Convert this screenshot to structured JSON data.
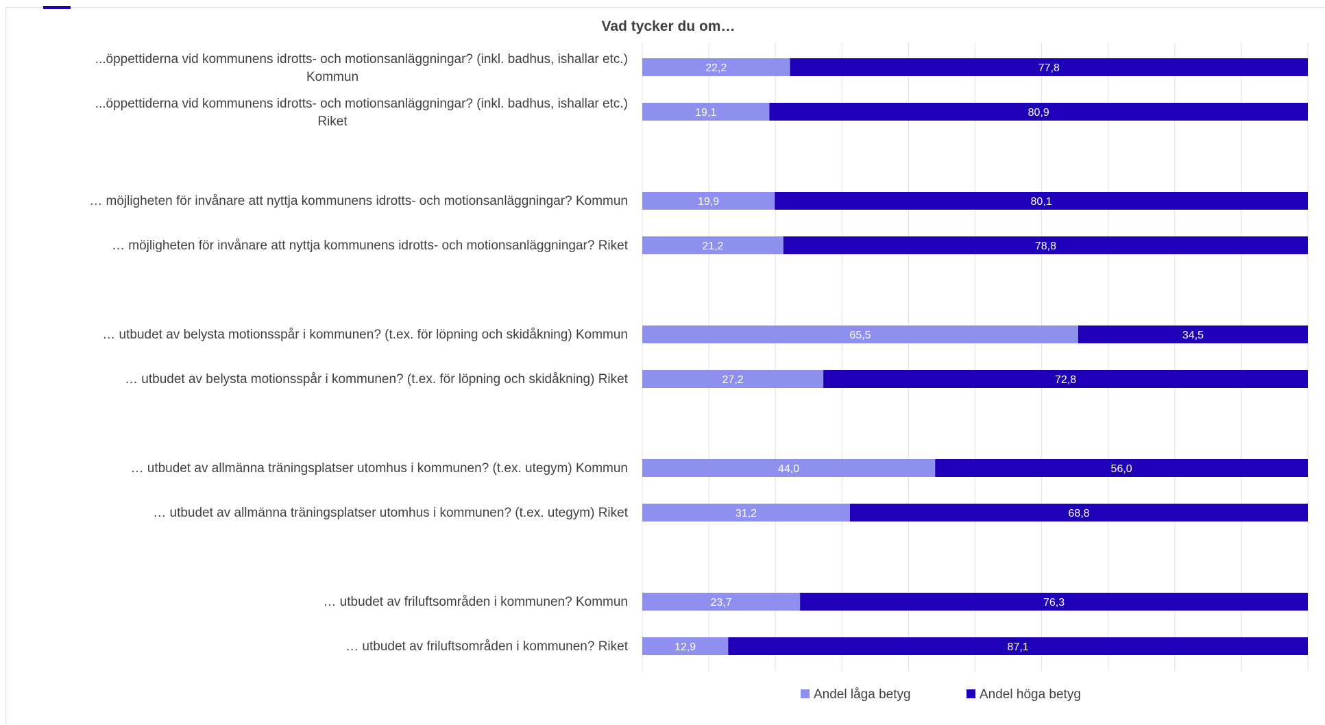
{
  "colors": {
    "low": "#8f8ff0",
    "high": "#1f00b8",
    "grid": "#e0e0e0",
    "text": "#404040",
    "label_text": "#ffffff",
    "accent": "#1f00b8"
  },
  "chart_data": {
    "type": "bar",
    "stacked": true,
    "orientation": "horizontal",
    "title": "Vad tycker du om…",
    "categories": [
      [
        "...öppettiderna vid kommunens idrotts- och motionsanläggningar? (inkl. badhus, ishallar etc.)",
        "Kommun"
      ],
      [
        "...öppettiderna vid kommunens idrotts- och motionsanläggningar? (inkl. badhus, ishallar etc.)",
        "Riket"
      ],
      [
        "… möjligheten för invånare att nyttja kommunens idrotts- och motionsanläggningar? Kommun"
      ],
      [
        "… möjligheten för invånare att nyttja kommunens idrotts- och motionsanläggningar? Riket"
      ],
      [
        "… utbudet av belysta motionsspår  i kommunen? (t.ex. för löpning och skidåkning) Kommun"
      ],
      [
        "… utbudet av belysta motionsspår  i kommunen? (t.ex. för löpning och skidåkning) Riket"
      ],
      [
        "… utbudet av allmänna träningsplatser utomhus i kommunen? (t.ex. utegym) Kommun"
      ],
      [
        "… utbudet av allmänna träningsplatser utomhus i kommunen? (t.ex. utegym) Riket"
      ],
      [
        "… utbudet av friluftsområden i kommunen? Kommun"
      ],
      [
        "… utbudet av friluftsområden i kommunen? Riket"
      ]
    ],
    "series": [
      {
        "name": "Andel låga betyg",
        "values": [
          22.2,
          19.1,
          19.9,
          21.2,
          65.5,
          27.2,
          44.0,
          31.2,
          23.7,
          12.9
        ],
        "labels": [
          "22,2",
          "19,1",
          "19,9",
          "21,2",
          "65,5",
          "27,2",
          "44,0",
          "31,2",
          "23,7",
          "12,9"
        ]
      },
      {
        "name": "Andel höga betyg",
        "values": [
          77.8,
          80.9,
          80.1,
          78.8,
          34.5,
          72.8,
          56.0,
          68.8,
          76.3,
          87.1
        ],
        "labels": [
          "77,8",
          "80,9",
          "80,1",
          "78,8",
          "34,5",
          "72,8",
          "56,0",
          "68,8",
          "76,3",
          "87,1"
        ]
      }
    ],
    "xlim": [
      0,
      100
    ],
    "grid": true,
    "legend_position": "bottom"
  }
}
